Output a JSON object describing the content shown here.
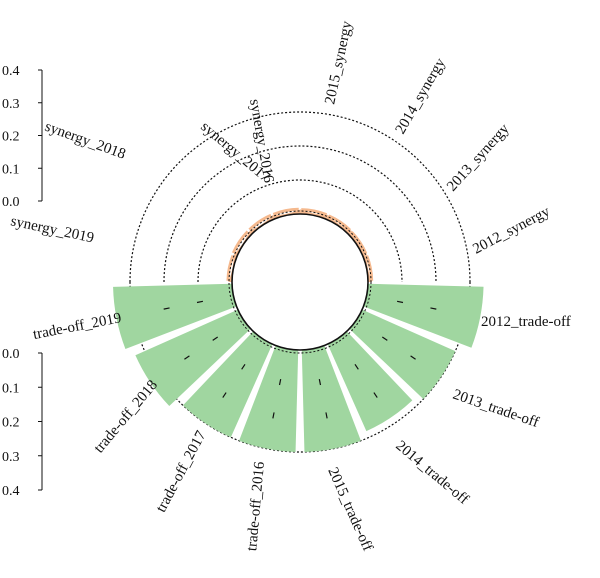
{
  "chart_data": {
    "type": "bar",
    "subtype": "circular-radial-bar",
    "categories": [
      "2012",
      "2013",
      "2014",
      "2015",
      "2016",
      "2017",
      "2018",
      "2019"
    ],
    "series": [
      {
        "name": "synergy",
        "labels": [
          "2012_synergy",
          "2013_synergy",
          "2014_synergy",
          "2015_synergy",
          "synergy_2016",
          "synergy_2017",
          "synergy_2018",
          "synergy_2019"
        ],
        "values": [
          0.005,
          0.005,
          0.006,
          0.007,
          0.008,
          0.008,
          0.008,
          0.006
        ],
        "color": "#f5b98e"
      },
      {
        "name": "trade-off",
        "labels": [
          "2012_trade-off",
          "2013_trade-off",
          "2014_trade-off",
          "2015_trade-off",
          "trade-off_2016",
          "trade-off_2017",
          "trade-off_2018",
          "trade-off_2019"
        ],
        "values": [
          0.34,
          0.3,
          0.28,
          0.3,
          0.3,
          0.3,
          0.33,
          0.35
        ],
        "color": "#a0d6a0"
      }
    ],
    "synergy_axis": {
      "ticks": [
        "0.0",
        "0.1",
        "0.2",
        "0.3",
        "0.4"
      ],
      "ylim": [
        0,
        0.4
      ]
    },
    "tradeoff_axis": {
      "ticks": [
        "0.0",
        "0.1",
        "0.2",
        "0.3",
        "0.4"
      ],
      "ylim": [
        0,
        0.4
      ]
    },
    "grid": "dotted circular",
    "legend": "none"
  }
}
